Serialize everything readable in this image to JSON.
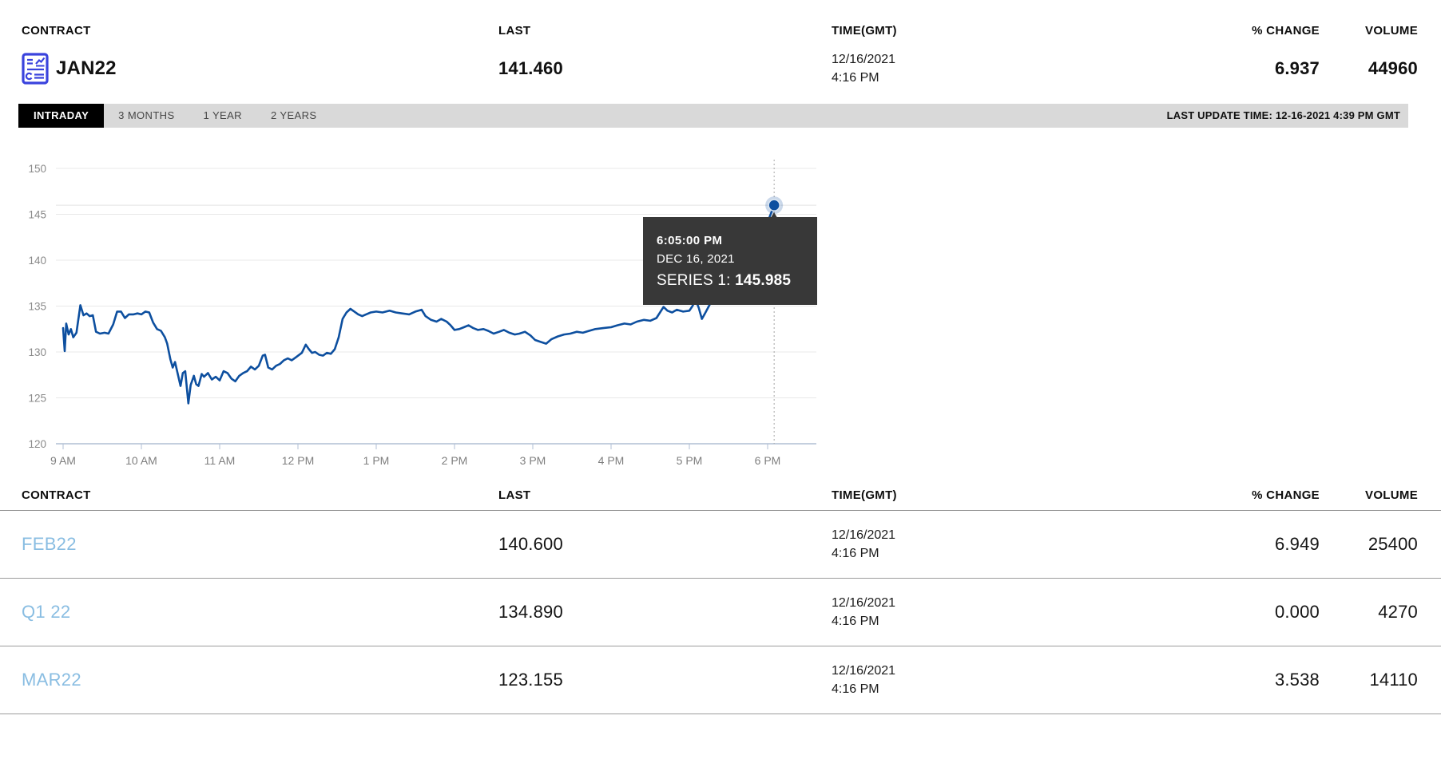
{
  "summary": {
    "columns": [
      "CONTRACT",
      "LAST",
      "TIME(GMT)",
      "% CHANGE",
      "VOLUME"
    ],
    "contract": "JAN22",
    "contract_icon": "contract-chart-icon",
    "last": "141.460",
    "date": "12/16/2021",
    "time": "4:16 PM",
    "pct_change": "6.937",
    "volume": "44960"
  },
  "tabs": {
    "items": [
      "INTRADAY",
      "3 MONTHS",
      "1 YEAR",
      "2 YEARS"
    ],
    "active": "INTRADAY",
    "last_update": "LAST UPDATE TIME: 12-16-2021 4:39 PM GMT"
  },
  "tooltip": {
    "time": "6:05:00 PM",
    "date": "DEC 16, 2021",
    "series_label": "SERIES 1:",
    "value": "145.985"
  },
  "chart_data": {
    "type": "line",
    "title": "JAN22 intraday price",
    "xlabel": "",
    "ylabel": "",
    "ylim": [
      120,
      150
    ],
    "y_ticks": [
      120,
      125,
      130,
      135,
      140,
      145,
      150
    ],
    "x_ticks": [
      {
        "t": 9,
        "label": "9 AM"
      },
      {
        "t": 10,
        "label": "10 AM"
      },
      {
        "t": 11,
        "label": "11 AM"
      },
      {
        "t": 12,
        "label": "12 PM"
      },
      {
        "t": 13,
        "label": "1 PM"
      },
      {
        "t": 14,
        "label": "2 PM"
      },
      {
        "t": 15,
        "label": "3 PM"
      },
      {
        "t": 16,
        "label": "4 PM"
      },
      {
        "t": 17,
        "label": "5 PM"
      },
      {
        "t": 18,
        "label": "6 PM"
      }
    ],
    "grid": true,
    "legend": "none",
    "line_color": "#0d4f9f",
    "highlight": {
      "x": 18.0833,
      "y": 145.985,
      "time": "6:05:00 PM",
      "date": "DEC 16, 2021"
    },
    "series": [
      {
        "name": "SERIES 1",
        "points": [
          [
            9.0,
            132.6
          ],
          [
            9.02,
            130.1
          ],
          [
            9.04,
            133.1
          ],
          [
            9.07,
            131.9
          ],
          [
            9.1,
            132.5
          ],
          [
            9.13,
            131.6
          ],
          [
            9.17,
            132.1
          ],
          [
            9.22,
            135.1
          ],
          [
            9.26,
            134.0
          ],
          [
            9.3,
            134.2
          ],
          [
            9.34,
            133.9
          ],
          [
            9.38,
            134.0
          ],
          [
            9.42,
            132.2
          ],
          [
            9.47,
            132.0
          ],
          [
            9.53,
            132.1
          ],
          [
            9.58,
            132.0
          ],
          [
            9.64,
            133.0
          ],
          [
            9.69,
            134.4
          ],
          [
            9.74,
            134.4
          ],
          [
            9.79,
            133.7
          ],
          [
            9.84,
            134.1
          ],
          [
            9.9,
            134.1
          ],
          [
            9.95,
            134.2
          ],
          [
            10.0,
            134.1
          ],
          [
            10.05,
            134.4
          ],
          [
            10.1,
            134.3
          ],
          [
            10.15,
            133.2
          ],
          [
            10.2,
            132.5
          ],
          [
            10.25,
            132.3
          ],
          [
            10.3,
            131.6
          ],
          [
            10.33,
            130.9
          ],
          [
            10.37,
            129.2
          ],
          [
            10.4,
            128.3
          ],
          [
            10.43,
            128.9
          ],
          [
            10.47,
            127.4
          ],
          [
            10.5,
            126.3
          ],
          [
            10.53,
            127.7
          ],
          [
            10.56,
            127.9
          ],
          [
            10.6,
            124.4
          ],
          [
            10.63,
            126.4
          ],
          [
            10.67,
            127.4
          ],
          [
            10.7,
            126.5
          ],
          [
            10.73,
            126.3
          ],
          [
            10.77,
            127.6
          ],
          [
            10.8,
            127.3
          ],
          [
            10.85,
            127.7
          ],
          [
            10.9,
            127.0
          ],
          [
            10.95,
            127.3
          ],
          [
            11.0,
            126.9
          ],
          [
            11.05,
            127.9
          ],
          [
            11.1,
            127.7
          ],
          [
            11.15,
            127.1
          ],
          [
            11.2,
            126.8
          ],
          [
            11.25,
            127.4
          ],
          [
            11.3,
            127.7
          ],
          [
            11.35,
            127.9
          ],
          [
            11.4,
            128.4
          ],
          [
            11.45,
            128.1
          ],
          [
            11.5,
            128.5
          ],
          [
            11.55,
            129.6
          ],
          [
            11.58,
            129.7
          ],
          [
            11.62,
            128.3
          ],
          [
            11.67,
            128.1
          ],
          [
            11.72,
            128.5
          ],
          [
            11.77,
            128.7
          ],
          [
            11.82,
            129.1
          ],
          [
            11.87,
            129.3
          ],
          [
            11.92,
            129.1
          ],
          [
            11.97,
            129.4
          ],
          [
            12.05,
            129.9
          ],
          [
            12.1,
            130.8
          ],
          [
            12.14,
            130.3
          ],
          [
            12.18,
            129.9
          ],
          [
            12.22,
            130.0
          ],
          [
            12.27,
            129.7
          ],
          [
            12.32,
            129.6
          ],
          [
            12.37,
            129.9
          ],
          [
            12.42,
            129.8
          ],
          [
            12.47,
            130.3
          ],
          [
            12.52,
            131.6
          ],
          [
            12.57,
            133.6
          ],
          [
            12.62,
            134.3
          ],
          [
            12.67,
            134.7
          ],
          [
            12.72,
            134.4
          ],
          [
            12.77,
            134.1
          ],
          [
            12.82,
            133.9
          ],
          [
            12.87,
            134.1
          ],
          [
            12.93,
            134.3
          ],
          [
            13.0,
            134.4
          ],
          [
            13.08,
            134.3
          ],
          [
            13.17,
            134.5
          ],
          [
            13.25,
            134.3
          ],
          [
            13.33,
            134.2
          ],
          [
            13.42,
            134.1
          ],
          [
            13.5,
            134.4
          ],
          [
            13.58,
            134.6
          ],
          [
            13.63,
            133.9
          ],
          [
            13.7,
            133.5
          ],
          [
            13.77,
            133.3
          ],
          [
            13.83,
            133.6
          ],
          [
            13.9,
            133.3
          ],
          [
            13.95,
            132.9
          ],
          [
            14.0,
            132.4
          ],
          [
            14.06,
            132.5
          ],
          [
            14.12,
            132.7
          ],
          [
            14.18,
            132.9
          ],
          [
            14.24,
            132.6
          ],
          [
            14.3,
            132.4
          ],
          [
            14.37,
            132.5
          ],
          [
            14.43,
            132.3
          ],
          [
            14.5,
            132.0
          ],
          [
            14.57,
            132.2
          ],
          [
            14.63,
            132.4
          ],
          [
            14.7,
            132.1
          ],
          [
            14.77,
            131.9
          ],
          [
            14.83,
            132.0
          ],
          [
            14.9,
            132.2
          ],
          [
            14.97,
            131.8
          ],
          [
            15.03,
            131.3
          ],
          [
            15.1,
            131.1
          ],
          [
            15.17,
            130.9
          ],
          [
            15.24,
            131.4
          ],
          [
            15.32,
            131.7
          ],
          [
            15.4,
            131.9
          ],
          [
            15.48,
            132.0
          ],
          [
            15.56,
            132.2
          ],
          [
            15.64,
            132.1
          ],
          [
            15.72,
            132.3
          ],
          [
            15.8,
            132.5
          ],
          [
            15.9,
            132.6
          ],
          [
            16.0,
            132.7
          ],
          [
            16.08,
            132.9
          ],
          [
            16.17,
            133.1
          ],
          [
            16.25,
            133.0
          ],
          [
            16.33,
            133.3
          ],
          [
            16.42,
            133.5
          ],
          [
            16.5,
            133.4
          ],
          [
            16.58,
            133.7
          ],
          [
            16.67,
            134.9
          ],
          [
            16.72,
            134.5
          ],
          [
            16.78,
            134.3
          ],
          [
            16.84,
            134.6
          ],
          [
            16.92,
            134.4
          ],
          [
            17.0,
            134.5
          ],
          [
            17.04,
            135.0
          ],
          [
            17.08,
            135.7
          ],
          [
            17.12,
            134.8
          ],
          [
            17.16,
            133.6
          ],
          [
            17.2,
            134.2
          ],
          [
            17.25,
            135.0
          ],
          [
            17.3,
            135.8
          ],
          [
            17.6,
            138.2
          ],
          [
            17.9,
            142.0
          ],
          [
            18.0833,
            145.985
          ]
        ]
      }
    ]
  },
  "table": {
    "columns": [
      "CONTRACT",
      "LAST",
      "TIME(GMT)",
      "% CHANGE",
      "VOLUME"
    ],
    "rows": [
      {
        "contract": "FEB22",
        "last": "140.600",
        "date": "12/16/2021",
        "time": "4:16 PM",
        "pct_change": "6.949",
        "volume": "25400"
      },
      {
        "contract": "Q1 22",
        "last": "134.890",
        "date": "12/16/2021",
        "time": "4:16 PM",
        "pct_change": "0.000",
        "volume": "4270"
      },
      {
        "contract": "MAR22",
        "last": "123.155",
        "date": "12/16/2021",
        "time": "4:16 PM",
        "pct_change": "3.538",
        "volume": "14110"
      }
    ]
  },
  "colors": {
    "accent_blue": "#3a43dd",
    "line_blue": "#0d4f9f",
    "link_blue": "#89bde2",
    "tab_bar_bg": "#d9d9d9",
    "tab_active_bg": "#000000",
    "tooltip_bg": "#383838",
    "grid_line": "#e8e8e8",
    "axis_line": "#b0bfd4"
  }
}
